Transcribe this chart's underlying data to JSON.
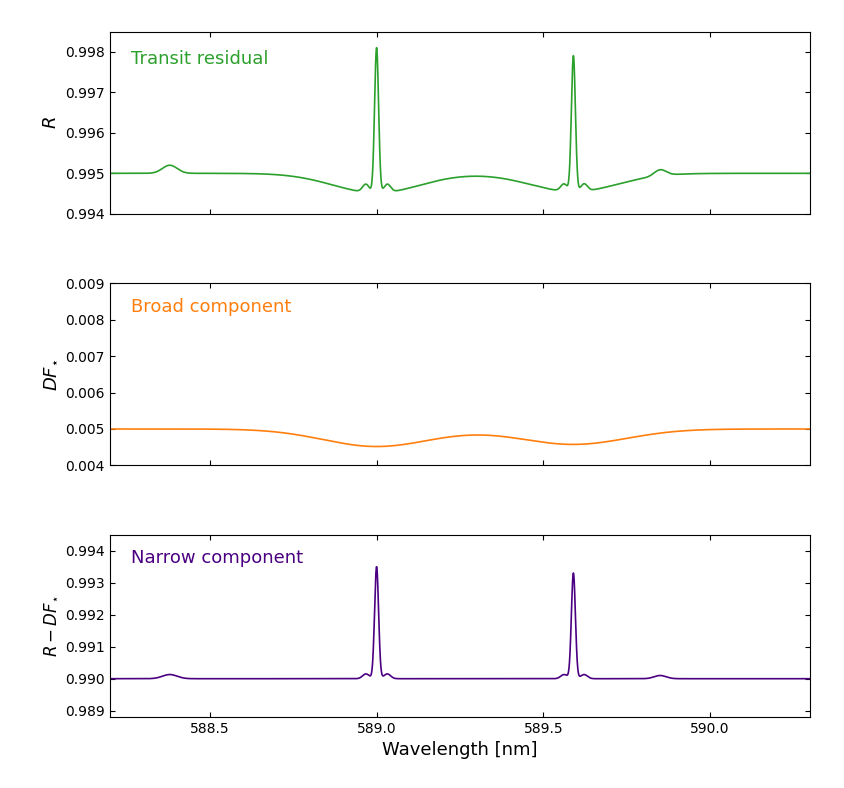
{
  "title1": "Transit residual",
  "title2": "Broad component",
  "title3": "Narrow component",
  "color1": "#2ca02c",
  "color2": "#ff7f0e",
  "color3": "#4b0082",
  "xlabel": "Wavelength [nm]",
  "ylabel1": "$R$",
  "ylabel2": "$DF_{\\star}$",
  "ylabel3": "$R - DF_{\\star}$",
  "xlim": [
    588.2,
    590.3
  ],
  "ylim1": [
    0.994,
    0.9985
  ],
  "ylim2": [
    0.004,
    0.009
  ],
  "ylim3": [
    0.9888,
    0.9945
  ],
  "yticks1": [
    0.994,
    0.995,
    0.996,
    0.997,
    0.998
  ],
  "yticks2": [
    0.004,
    0.005,
    0.006,
    0.007,
    0.008,
    0.009
  ],
  "yticks3": [
    0.989,
    0.99,
    0.991,
    0.992,
    0.993,
    0.994
  ],
  "xticks": [
    588.5,
    589.0,
    589.5,
    590.0
  ],
  "na_d2": 589.0,
  "na_d1": 589.59,
  "base1": 0.995,
  "base2": 0.005,
  "base3": 0.99,
  "peak1_main": 0.9981,
  "peak2_main": 0.9979,
  "peak1_narrow": 0.9935,
  "peak2_narrow": 0.9933,
  "broad_dip_depth": 0.00048,
  "line_width": 1.2
}
